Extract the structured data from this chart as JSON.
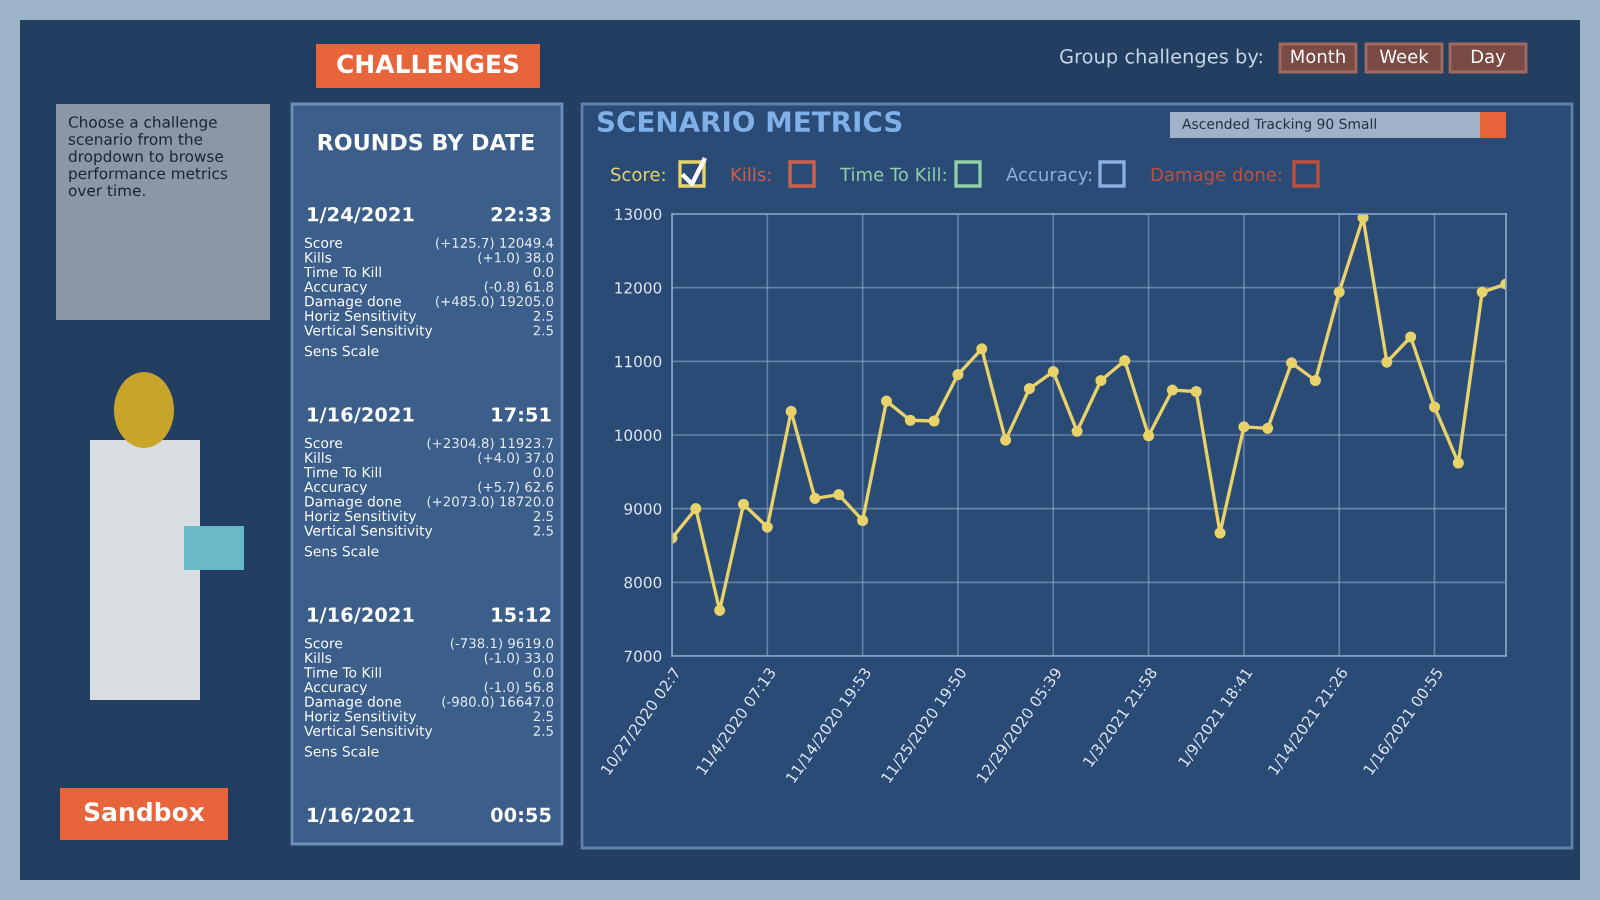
{
  "chart_data": {
    "type": "line",
    "title": "SCENARIO METRICS",
    "categories": [
      "10/27/2020 02:7",
      null,
      null,
      null,
      "11/4/2020 07:13",
      null,
      null,
      null,
      "11/14/2020 19:53",
      null,
      null,
      null,
      "11/25/2020 19:50",
      null,
      null,
      null,
      "12/29/2020 05:39",
      null,
      null,
      null,
      "1/3/2021 21:58",
      null,
      null,
      null,
      "1/9/2021 18:41",
      null,
      null,
      null,
      "1/14/2021 21:26",
      null,
      null,
      null,
      "1/16/2021 00:55",
      null,
      null,
      null
    ],
    "series": [
      {
        "name": "Score:",
        "color": "#e8d26a",
        "values": [
          8600,
          9000,
          7620,
          9060,
          8750,
          10320,
          9140,
          9190,
          8840,
          10460,
          10200,
          10190,
          10820,
          11170,
          9930,
          10630,
          10860,
          10050,
          10740,
          11010,
          9990,
          10610,
          10590,
          8670,
          10110,
          10090,
          10980,
          10740,
          11940,
          12950,
          10990,
          11330,
          10380,
          9620,
          11940,
          12050
        ]
      }
    ],
    "ylim": [
      7000,
      13000
    ],
    "yticks": [
      7000,
      8000,
      9000,
      10000,
      11000,
      12000,
      13000
    ],
    "grid": true,
    "marker": "circle",
    "line_style": "solid",
    "annotations": [
      "CHALLENGES",
      "Group challenges by:",
      "Month",
      "Week",
      "Day",
      "Choose a challenge scenario from the dropdown to browse performance metrics over time.",
      "Sandbox",
      "ROUNDS BY DATE",
      "Ascended Tracking 90 Small",
      "Kills:",
      "Time To Kill:",
      "Accuracy:",
      "Damage done:",
      "1/24/2021",
      "22:33",
      "Score",
      "(+125.7) 12049.4",
      "Kills",
      "(+1.0) 38.0",
      "Time To Kill",
      "0.0",
      "Accuracy",
      "(-0.8) 61.8",
      "Damage done",
      "(+485.0) 19205.0",
      "Horiz Sensitivity",
      "2.5",
      "Vertical Sensitivity",
      "2.5",
      "Sens Scale",
      "1/16/2021",
      "17:51",
      "Score",
      "(+2304.8) 11923.7",
      "Kills",
      "(+4.0) 37.0",
      "Time To Kill",
      "0.0",
      "Accuracy",
      "(+5.7) 62.6",
      "Damage done",
      "(+2073.0) 18720.0",
      "Horiz Sensitivity",
      "2.5",
      "Vertical Sensitivity",
      "2.5",
      "Sens Scale",
      "1/16/2021",
      "15:12",
      "Score",
      "(-738.1) 9619.0",
      "Kills",
      "(-1.0) 33.0",
      "Time To Kill",
      "0.0",
      "Accuracy",
      "(-1.0) 56.8",
      "Damage done",
      "(-980.0) 16647.0",
      "Horiz Sensitivity",
      "2.5",
      "Vertical Sensitivity",
      "2.5",
      "Sens Scale",
      "1/16/2021",
      "00:55"
    ]
  }
}
